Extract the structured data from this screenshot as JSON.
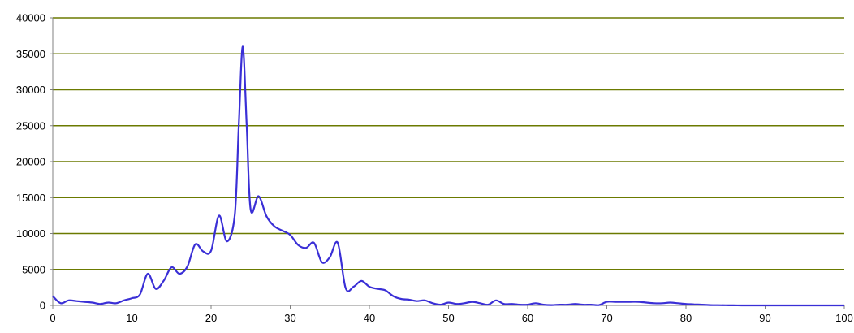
{
  "chart_data": {
    "type": "line",
    "title": "",
    "xlabel": "",
    "ylabel": "",
    "xlim": [
      0,
      100
    ],
    "ylim": [
      0,
      40000
    ],
    "x_ticks": [
      0,
      10,
      20,
      30,
      40,
      50,
      60,
      70,
      80,
      90,
      100
    ],
    "y_ticks": [
      0,
      5000,
      10000,
      15000,
      20000,
      25000,
      30000,
      35000,
      40000
    ],
    "grid": "horizontal",
    "legend": "none",
    "colors": {
      "line": "#3a2fd6",
      "grid": "#6b7a00",
      "axis": "#808080",
      "background": "#ffffff"
    },
    "series": [
      {
        "x": [
          0,
          1,
          2,
          3,
          4,
          5,
          6,
          7,
          8,
          9,
          10,
          11,
          12,
          13,
          14,
          15,
          16,
          17,
          18,
          19,
          20,
          21,
          22,
          23,
          23.5,
          24,
          24.5,
          25,
          26,
          27,
          28,
          29,
          30,
          31,
          32,
          33,
          34,
          35,
          36,
          37,
          38,
          39,
          40,
          41,
          42,
          43,
          44,
          45,
          46,
          47,
          48,
          49,
          50,
          51,
          52,
          53,
          54,
          55,
          56,
          57,
          58,
          59,
          60,
          61,
          62,
          63,
          64,
          65,
          66,
          67,
          68,
          69,
          70,
          71,
          72,
          73,
          74,
          75,
          76,
          77,
          78,
          79,
          80,
          81,
          82,
          83,
          84,
          85,
          86,
          87,
          88,
          89,
          90,
          91,
          92,
          93,
          94,
          95,
          96,
          97,
          98,
          99,
          100
        ],
        "values": [
          1300,
          300,
          700,
          600,
          500,
          400,
          200,
          400,
          300,
          700,
          1000,
          1500,
          4400,
          2300,
          3400,
          5300,
          4400,
          5400,
          8500,
          7500,
          7600,
          12500,
          8900,
          12700,
          25000,
          36000,
          25000,
          13300,
          15200,
          12400,
          11000,
          10400,
          9800,
          8400,
          8000,
          8700,
          6000,
          6700,
          8700,
          2400,
          2600,
          3400,
          2600,
          2300,
          2100,
          1300,
          900,
          800,
          600,
          700,
          300,
          100,
          400,
          200,
          300,
          500,
          300,
          100,
          700,
          200,
          200,
          100,
          100,
          300,
          100,
          50,
          100,
          100,
          200,
          100,
          100,
          50,
          500,
          500,
          500,
          500,
          500,
          400,
          300,
          300,
          400,
          300,
          200,
          150,
          100,
          50,
          30,
          20,
          10,
          0,
          0,
          0,
          0,
          0,
          0,
          0,
          0,
          0,
          0,
          0,
          0,
          0,
          0
        ]
      }
    ]
  }
}
